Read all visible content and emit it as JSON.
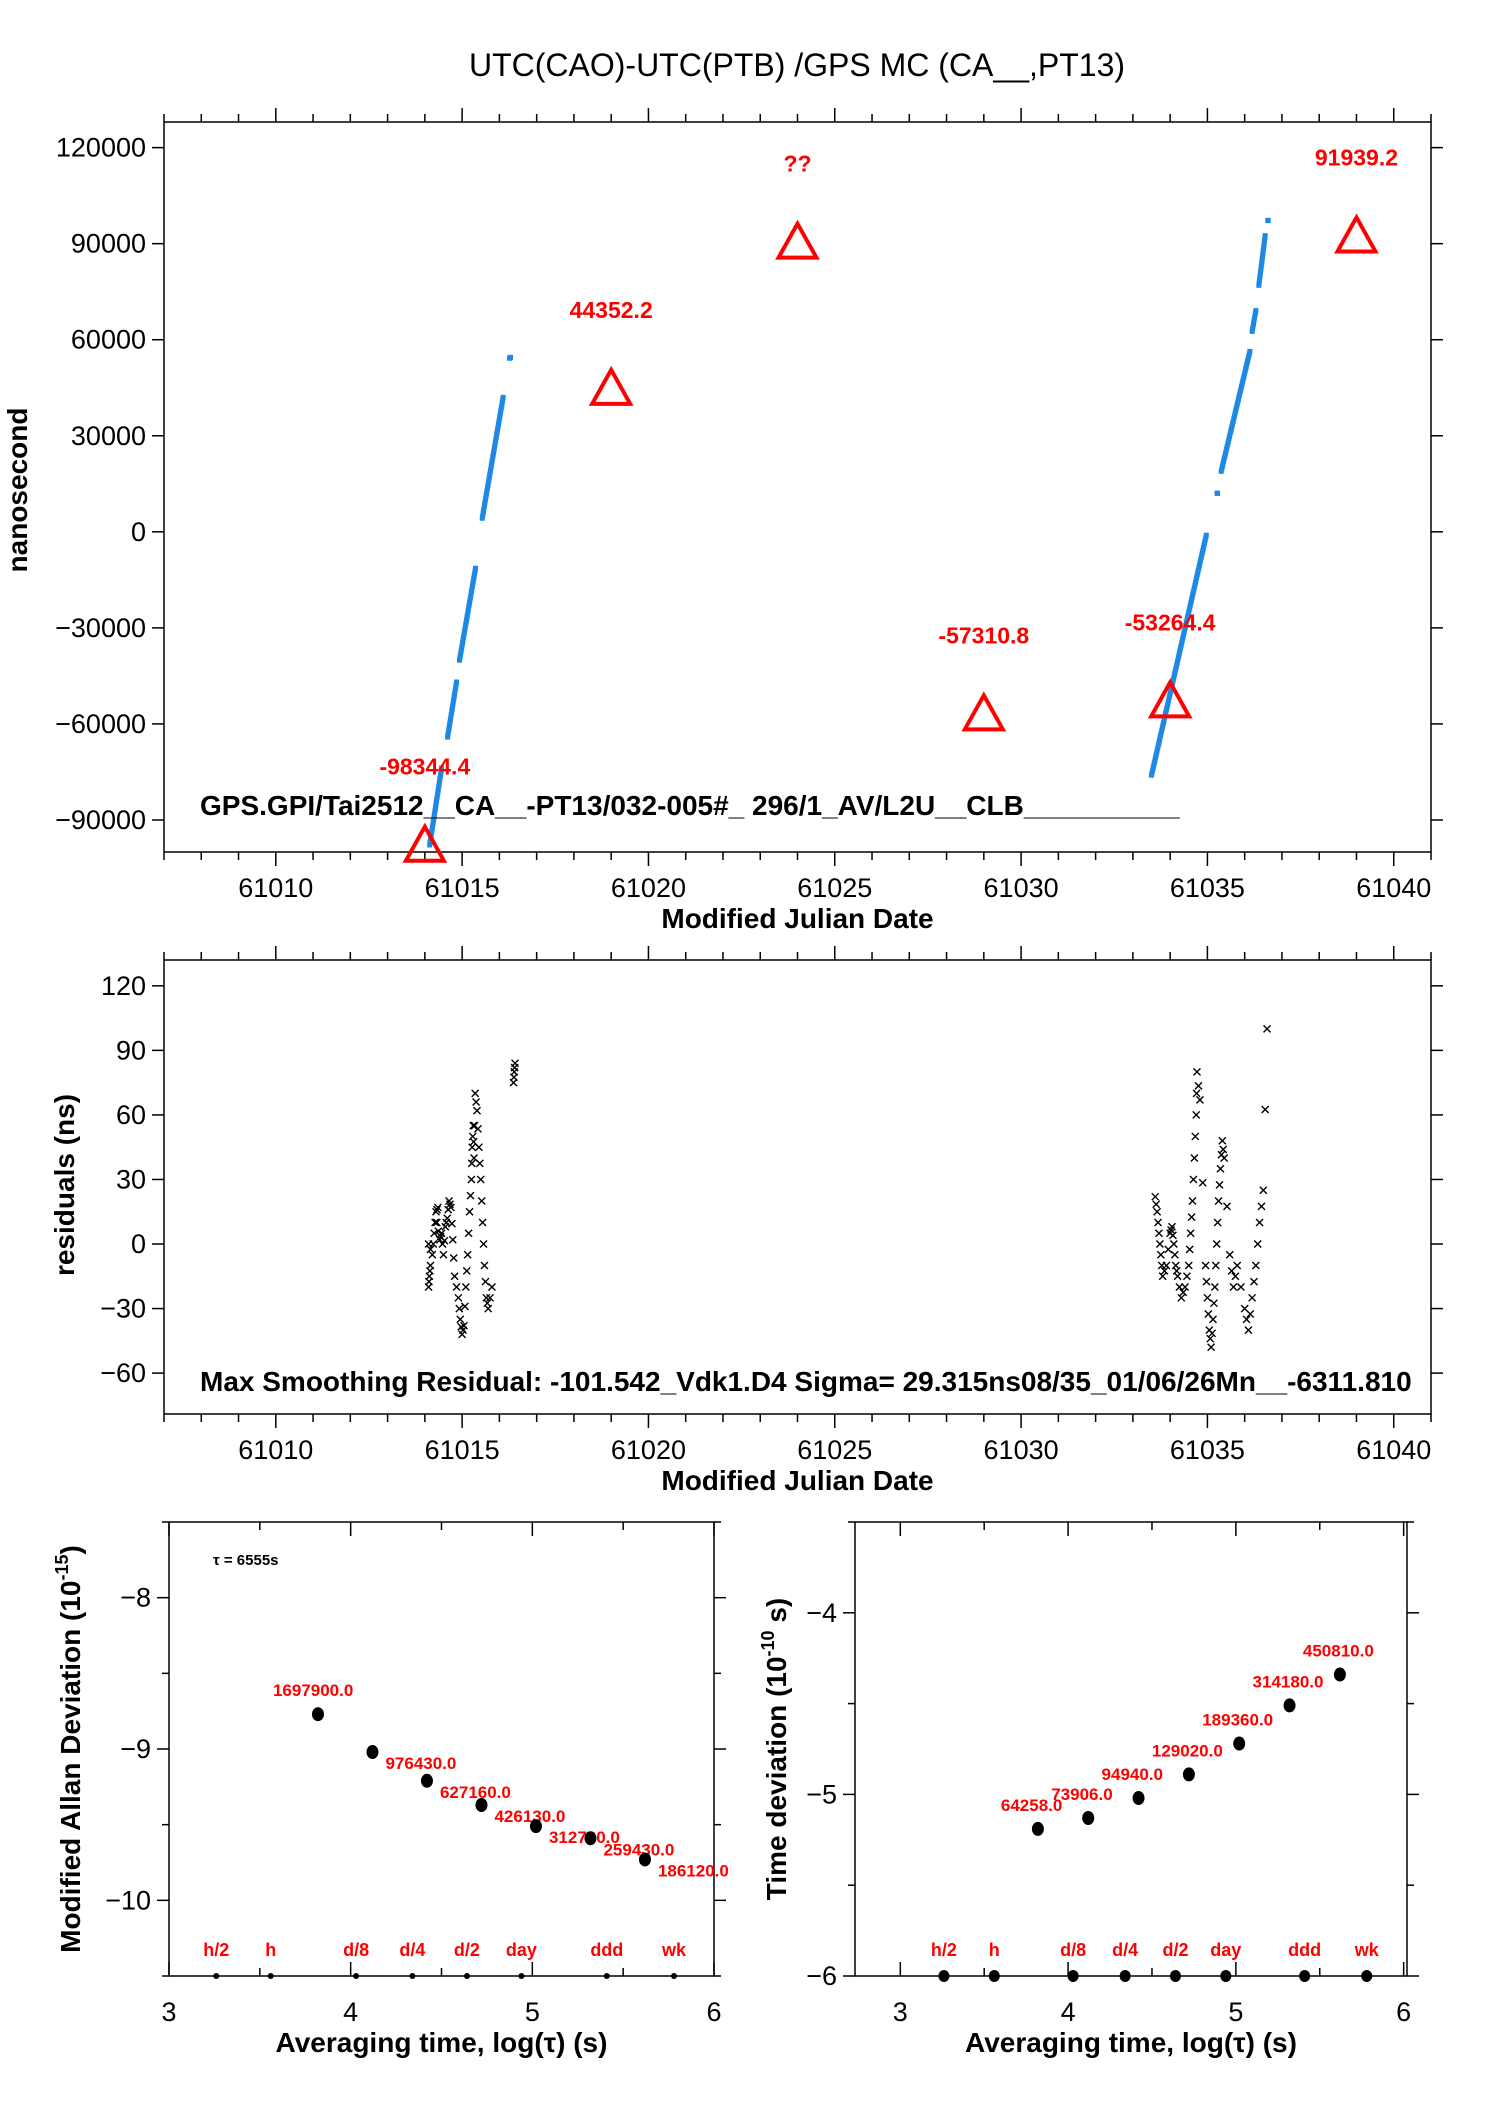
{
  "title": "UTC(CAO)-UTC(PTB)  /GPS  MC  (CA__,PT13)",
  "colors": {
    "points": "#1e88e5",
    "triangles": "#ff0000",
    "labels": "#ff0000",
    "residuals": "#000000"
  },
  "chart_data": [
    {
      "type": "scatter",
      "xlabel": "Modified Julian Date",
      "ylabel": "nanosecond",
      "xlim": [
        61007,
        61041
      ],
      "ylim": [
        -100000,
        128000
      ],
      "xticks": [
        61010,
        61015,
        61020,
        61025,
        61030,
        61035,
        61040
      ],
      "yticks": [
        120000,
        90000,
        60000,
        30000,
        0,
        -30000,
        -60000,
        -90000
      ],
      "ytick_labels": [
        "120000",
        "90000",
        "60000",
        "30000",
        "0",
        "−30000",
        "−60000",
        "−90000"
      ],
      "grid": false,
      "annotation": "GPS.GPI/Tai2512__CA__-PT13/032-005#_  296/1_AV/L2U__CLB__________",
      "series_segments": [
        [
          61014.13,
          -97800,
          61014.45,
          -73760
        ],
        [
          61014.61,
          -64100,
          61014.85,
          -46900
        ],
        [
          61014.93,
          -40100,
          61015.36,
          -11360
        ],
        [
          61015.54,
          4240,
          61016.1,
          42000
        ],
        [
          61016.27,
          54200,
          61016.3,
          54500
        ],
        [
          61033.5,
          -76000,
          61034.97,
          -1060
        ],
        [
          61035.26,
          12000,
          61035.27,
          12100
        ],
        [
          61035.37,
          18900,
          61036.14,
          56350
        ],
        [
          61036.2,
          62600,
          61036.3,
          69100
        ],
        [
          61036.38,
          77000,
          61036.55,
          92500
        ],
        [
          61036.62,
          97200,
          61036.63,
          97300
        ]
      ],
      "markers": [
        {
          "x": 61014,
          "y": -98344.4,
          "label": "-98344.4"
        },
        {
          "x": 61019,
          "y": 44352.2,
          "label": "44352.2"
        },
        {
          "x": 61024,
          "y": 90000,
          "label": "??"
        },
        {
          "x": 61029,
          "y": -57310.8,
          "label": "-57310.8"
        },
        {
          "x": 61034,
          "y": -53264.4,
          "label": "-53264.4"
        },
        {
          "x": 61039,
          "y": 91939.2,
          "label": "91939.2"
        }
      ]
    },
    {
      "type": "scatter",
      "xlabel": "Modified Julian Date",
      "ylabel": "residuals (ns)",
      "xlim": [
        61007,
        61041
      ],
      "ylim": [
        -79,
        132
      ],
      "xticks": [
        61010,
        61015,
        61020,
        61025,
        61030,
        61035,
        61040
      ],
      "yticks": [
        120,
        90,
        60,
        30,
        0,
        -30,
        -60
      ],
      "ytick_labels": [
        "120",
        "90",
        "60",
        "30",
        "0",
        "−30",
        "−60"
      ],
      "grid": false,
      "annotation": "Max Smoothing Residual: -101.542_Vdk1.D4  Sigma= 29.315ns08/35_01/06/26Mn__-6311.810",
      "points": [
        [
          61014.1,
          -20
        ],
        [
          61014.12,
          -15
        ],
        [
          61014.15,
          -10
        ],
        [
          61014.1,
          0
        ],
        [
          61014.2,
          -5
        ],
        [
          61014.25,
          5
        ],
        [
          61014.3,
          15
        ],
        [
          61014.35,
          17
        ],
        [
          61014.32,
          10
        ],
        [
          61014.4,
          2
        ],
        [
          61014.45,
          5
        ],
        [
          61014.5,
          -5
        ],
        [
          61014.55,
          8
        ],
        [
          61014.6,
          12
        ],
        [
          61014.65,
          20
        ],
        [
          61014.7,
          17
        ],
        [
          61014.75,
          2
        ],
        [
          61014.8,
          -15
        ],
        [
          61014.9,
          -25
        ],
        [
          61014.95,
          -35
        ],
        [
          61015.0,
          -42
        ],
        [
          61015.05,
          -38
        ],
        [
          61015.1,
          -20
        ],
        [
          61015.15,
          -5
        ],
        [
          61015.2,
          15
        ],
        [
          61015.25,
          30
        ],
        [
          61015.27,
          45
        ],
        [
          61015.3,
          55
        ],
        [
          61015.32,
          40
        ],
        [
          61015.35,
          70
        ],
        [
          61015.4,
          62
        ],
        [
          61015.45,
          45
        ],
        [
          61015.5,
          30
        ],
        [
          61015.55,
          10
        ],
        [
          61015.6,
          -10
        ],
        [
          61015.65,
          -25
        ],
        [
          61015.7,
          -30
        ],
        [
          61015.8,
          -20
        ],
        [
          61016.38,
          75
        ],
        [
          61016.4,
          80
        ],
        [
          61016.42,
          84
        ],
        [
          61033.6,
          22
        ],
        [
          61033.65,
          15
        ],
        [
          61033.7,
          5
        ],
        [
          61033.75,
          -5
        ],
        [
          61033.8,
          -15
        ],
        [
          61033.9,
          -10
        ],
        [
          61034.0,
          5
        ],
        [
          61034.05,
          8
        ],
        [
          61034.1,
          0
        ],
        [
          61034.15,
          -10
        ],
        [
          61034.2,
          -15
        ],
        [
          61034.3,
          -25
        ],
        [
          61034.4,
          -20
        ],
        [
          61034.5,
          -10
        ],
        [
          61034.55,
          5
        ],
        [
          61034.6,
          20
        ],
        [
          61034.65,
          40
        ],
        [
          61034.7,
          60
        ],
        [
          61034.72,
          80
        ],
        [
          61034.8,
          67
        ],
        [
          61034.95,
          -10
        ],
        [
          61035.0,
          -25
        ],
        [
          61035.05,
          -40
        ],
        [
          61035.1,
          -48
        ],
        [
          61035.15,
          -35
        ],
        [
          61035.2,
          -20
        ],
        [
          61035.25,
          0
        ],
        [
          61035.3,
          20
        ],
        [
          61035.35,
          35
        ],
        [
          61035.4,
          48
        ],
        [
          61035.45,
          40
        ],
        [
          61035.6,
          -5
        ],
        [
          61035.7,
          -20
        ],
        [
          61035.8,
          -10
        ],
        [
          61036.0,
          -30
        ],
        [
          61036.1,
          -40
        ],
        [
          61036.2,
          -25
        ],
        [
          61036.3,
          -10
        ],
        [
          61036.4,
          10
        ],
        [
          61036.5,
          25
        ],
        [
          61036.6,
          100
        ]
      ]
    },
    {
      "type": "scatter",
      "xlabel": "Averaging time, log(τ) (s)",
      "ylabel_main": "Modified Allan Deviation (10",
      "ylabel_exp": "-15",
      "ylabel_end": ")",
      "xlim": [
        3,
        6
      ],
      "ylim": [
        -10.5,
        -7.5
      ],
      "xticks": [
        3,
        4,
        5,
        6
      ],
      "yticks": [
        -8,
        -9,
        -10
      ],
      "ytick_labels": [
        "−8",
        "−9",
        "−10"
      ],
      "annotation": "τ = 6555s",
      "x": [
        3.82,
        4.12,
        4.42,
        4.72,
        5.02,
        5.32,
        5.62
      ],
      "y": [
        -8.77,
        -9.02,
        -9.21,
        -9.37,
        -9.51,
        -9.59,
        -9.73
      ],
      "labels": [
        "1697900.0",
        "976430.0",
        "627160.0",
        "426130.0",
        "312730.0",
        "259430.0",
        "186120.0"
      ],
      "reference_marks": [
        {
          "x": 3.26,
          "label": "h/2"
        },
        {
          "x": 3.56,
          "label": "h"
        },
        {
          "x": 4.03,
          "label": "d/8"
        },
        {
          "x": 4.34,
          "label": "d/4"
        },
        {
          "x": 4.64,
          "label": "d/2"
        },
        {
          "x": 4.94,
          "label": "day"
        },
        {
          "x": 5.41,
          "label": "ddd"
        },
        {
          "x": 5.78,
          "label": "wk"
        }
      ]
    },
    {
      "type": "scatter",
      "xlabel": "Averaging time, log(τ) (s)",
      "ylabel_main": "Time deviation (10",
      "ylabel_exp": "-10",
      "ylabel_end": " s)",
      "xlim": [
        2.73,
        6.02
      ],
      "ylim": [
        -6,
        -3.5
      ],
      "xticks": [
        3,
        4,
        5,
        6
      ],
      "yticks": [
        -4,
        -5,
        -6
      ],
      "ytick_labels": [
        "−4",
        "−5",
        "−6"
      ],
      "x": [
        3.82,
        4.12,
        4.42,
        4.72,
        5.02,
        5.32,
        5.62
      ],
      "y": [
        -5.19,
        -5.13,
        -5.02,
        -4.89,
        -4.72,
        -4.51,
        -4.34
      ],
      "labels": [
        "64258.0",
        "73906.0",
        "94940.0",
        "129020.0",
        "189360.0",
        "314180.0",
        "450810.0"
      ],
      "reference_marks": [
        {
          "x": 3.26,
          "label": "h/2"
        },
        {
          "x": 3.56,
          "label": "h"
        },
        {
          "x": 4.03,
          "label": "d/8"
        },
        {
          "x": 4.34,
          "label": "d/4"
        },
        {
          "x": 4.64,
          "label": "d/2"
        },
        {
          "x": 4.94,
          "label": "day"
        },
        {
          "x": 5.41,
          "label": "ddd"
        },
        {
          "x": 5.78,
          "label": "wk"
        }
      ]
    }
  ]
}
